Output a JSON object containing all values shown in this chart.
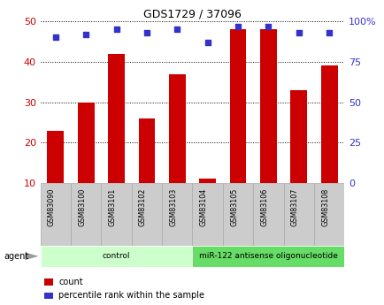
{
  "title": "GDS1729 / 37096",
  "samples": [
    "GSM83090",
    "GSM83100",
    "GSM83101",
    "GSM83102",
    "GSM83103",
    "GSM83104",
    "GSM83105",
    "GSM83106",
    "GSM83107",
    "GSM83108"
  ],
  "counts": [
    23,
    30,
    42,
    26,
    37,
    11,
    48,
    48,
    33,
    39
  ],
  "percentile_ranks": [
    90,
    92,
    95,
    93,
    95,
    87,
    97,
    97,
    93,
    93
  ],
  "bar_color": "#cc0000",
  "dot_color": "#3333cc",
  "left_ylim": [
    10,
    50
  ],
  "left_yticks": [
    10,
    20,
    30,
    40,
    50
  ],
  "right_ylim": [
    0,
    100
  ],
  "right_yticks": [
    0,
    25,
    50,
    75,
    100
  ],
  "right_yticklabels": [
    "0",
    "25",
    "50",
    "75",
    "100%"
  ],
  "groups": [
    {
      "label": "control",
      "start": 0,
      "end": 5,
      "color": "#ccffcc"
    },
    {
      "label": "miR-122 antisense oligonucleotide",
      "start": 5,
      "end": 10,
      "color": "#66dd66"
    }
  ],
  "agent_label": "agent",
  "legend_count_label": "count",
  "legend_pct_label": "percentile rank within the sample",
  "background_color": "#ffffff",
  "tick_label_color_left": "#cc0000",
  "tick_label_color_right": "#3333cc",
  "label_box_color": "#cccccc",
  "label_box_edge": "#aaaaaa"
}
